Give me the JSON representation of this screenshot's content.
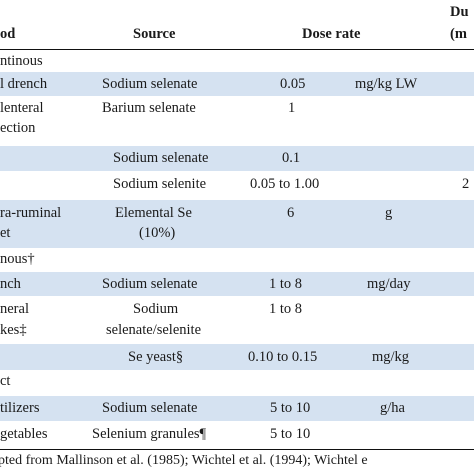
{
  "header": {
    "method": "od",
    "source": "Source",
    "dose_rate": "Dose rate",
    "duration_line1": "Du",
    "duration_line2": "(m"
  },
  "rows": [
    {
      "method": "ntinous"
    },
    {
      "method": "l drench",
      "source": "Sodium selenate",
      "dose": "0.05",
      "unit": "mg/kg LW"
    },
    {
      "method_line1": "lenteral",
      "method_line2": "ection",
      "source": "Barium selenate",
      "dose": "1"
    },
    {
      "source": "Sodium selenate",
      "dose": "0.1"
    },
    {
      "source": "Sodium selenite",
      "dose": "0.05 to 1.00",
      "duration": "2"
    },
    {
      "method_line1": "ra-ruminal",
      "method_line2": "et",
      "source_line1": "Elemental Se",
      "source_line2": "(10%)",
      "dose": "6",
      "unit": "g"
    },
    {
      "method": "nous†"
    },
    {
      "method": "nch",
      "source": "Sodium selenate",
      "dose": "1 to 8",
      "unit": "mg/day"
    },
    {
      "method_line1": "neral",
      "method_line2": "kes‡",
      "source_line1": "Sodium",
      "source_line2": "selenate/selenite",
      "dose": "1 to 8"
    },
    {
      "source": "Se yeast§",
      "dose": "0.10 to 0.15",
      "unit": "mg/kg"
    },
    {
      "method": "ct"
    },
    {
      "method": "tilizers",
      "source": "Sodium selenate",
      "dose": "5 to 10",
      "unit": "g/ha"
    },
    {
      "method": "getables",
      "source": "Selenium granules¶",
      "dose": "5 to 10"
    }
  ],
  "footnote": "pted from Mallinson et al. (1985); Wichtel et al. (1994); Wichtel e"
}
